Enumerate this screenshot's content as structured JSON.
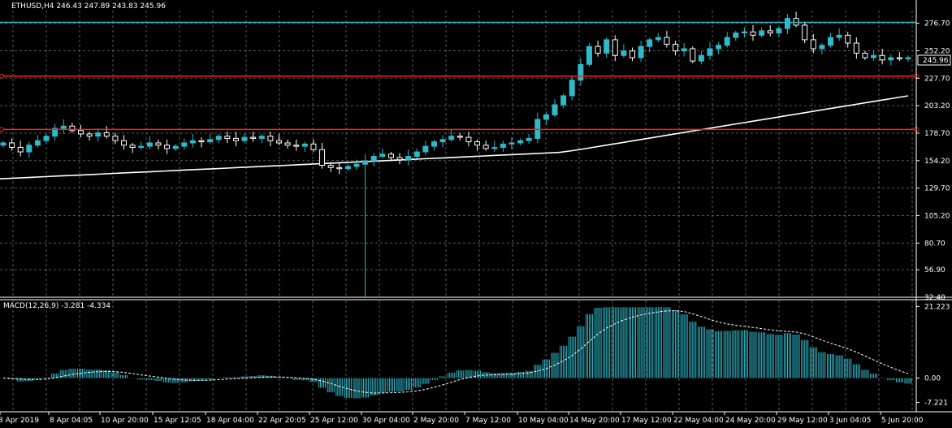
{
  "main_panel": {
    "symbol_line": "ETHUSD,H4  246.43 247.89 243.83 245.96",
    "last_price_label": "245.96",
    "price_ticks": [
      "276.70",
      "252.20",
      "227.70",
      "203.20",
      "178.70",
      "154.20",
      "129.70",
      "105.20",
      "80.70",
      "56.90",
      "32.40"
    ],
    "horizontal_levels": [
      {
        "price": 277.5,
        "color": "#2fb9c9"
      },
      {
        "price": 229.5,
        "color": "#ff2020"
      },
      {
        "price": 182.0,
        "color": "#ff2020"
      }
    ],
    "colors": {
      "bull_candle": "#2fb9c9",
      "bear_candle": "#ffffff",
      "ma_line": "#ffffff",
      "grid": "#5a5a5a",
      "axis_border": "#ffffff"
    }
  },
  "macd_panel": {
    "label": "MACD(12,26,9) -3.281 -4.334",
    "ticks": [
      "21.223",
      "0.00",
      "-7.221"
    ],
    "colors": {
      "histogram": "#2fb9c9",
      "signal": "#ffffff"
    }
  },
  "time_axis": {
    "labels": [
      "3 Apr 2019",
      "8 Apr 04:05",
      "10 Apr 20:00",
      "15 Apr 12:05",
      "18 Apr 04:00",
      "22 Apr 20:05",
      "25 Apr 12:00",
      "30 Apr 04:00",
      "2 May 20:00",
      "7 May 12:00",
      "10 May 04:00",
      "14 May 20:00",
      "17 May 12:00",
      "22 May 04:00",
      "24 May 20:00",
      "29 May 12:00",
      "3 Jun 04:05",
      "5 Jun 20:00"
    ]
  },
  "chart_data": {
    "type": "candlestick",
    "symbol": "ETHUSD",
    "timeframe": "H4",
    "ohlc_last": {
      "open": 246.43,
      "high": 247.89,
      "low": 243.83,
      "close": 245.96
    },
    "price_axis_range": [
      32.4,
      288.0
    ],
    "close_series": [
      170,
      166,
      162,
      168,
      172,
      176,
      183,
      185,
      181,
      178,
      176,
      179,
      176,
      172,
      168,
      166,
      167,
      170,
      168,
      165,
      167,
      170,
      172,
      171,
      173,
      176,
      174,
      172,
      175,
      174,
      176,
      172,
      170,
      168,
      167,
      169,
      164,
      150,
      148,
      147,
      149,
      151,
      154,
      158,
      160,
      157,
      155,
      158,
      162,
      167,
      171,
      173,
      176,
      175,
      171,
      168,
      165,
      166,
      169,
      170,
      172,
      174,
      191,
      195,
      204,
      212,
      226,
      240,
      256,
      250,
      262,
      248,
      252,
      246,
      256,
      262,
      264,
      258,
      252,
      254,
      243,
      248,
      254,
      257,
      264,
      268,
      269,
      266,
      270,
      268,
      272,
      281,
      275,
      262,
      254,
      257,
      264,
      266,
      259,
      250,
      246,
      248,
      244,
      246,
      245,
      246
    ],
    "moving_average": {
      "start": 138.0,
      "end": 212.0
    },
    "spike_low": {
      "index": 42,
      "price": 33.0
    },
    "macd": {
      "value": -3.281,
      "signal": -4.334,
      "axis_range": [
        -7.221,
        21.223
      ]
    }
  }
}
